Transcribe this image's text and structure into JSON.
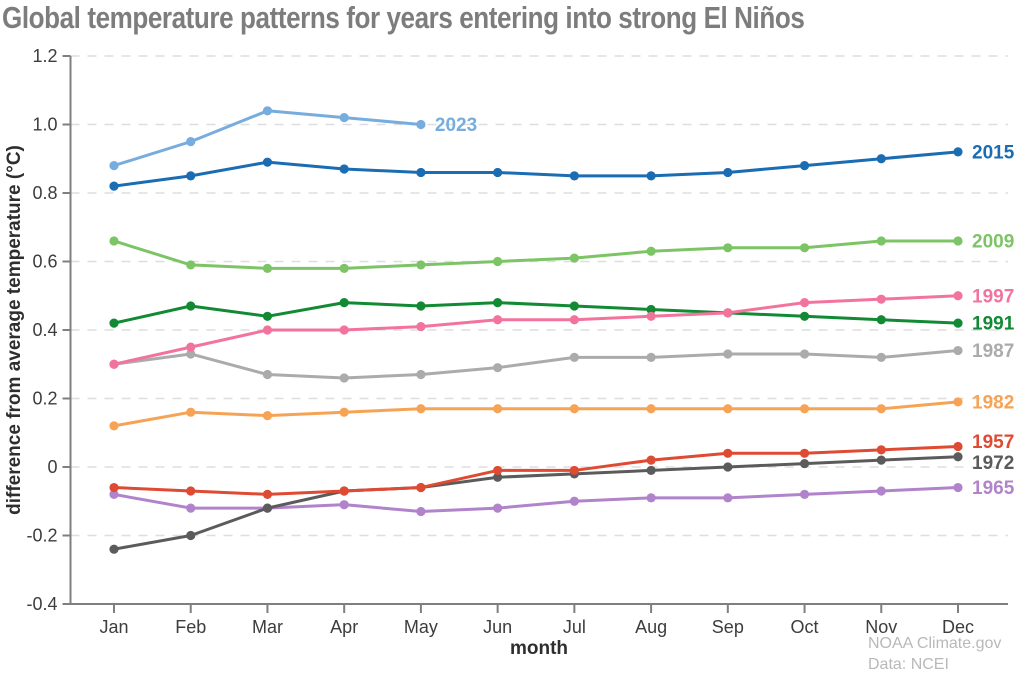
{
  "chart_data": {
    "type": "line",
    "title": "Global temperature patterns for years entering into strong El Niños",
    "xlabel": "month",
    "ylabel": "difference from average temperature (°C)",
    "x_categories": [
      "Jan",
      "Feb",
      "Mar",
      "Apr",
      "May",
      "Jun",
      "Jul",
      "Aug",
      "Sep",
      "Oct",
      "Nov",
      "Dec"
    ],
    "ylim": [
      -0.4,
      1.2
    ],
    "yticks": [
      {
        "value": 1.2,
        "label": "1.2"
      },
      {
        "value": 1.0,
        "label": "1.0"
      },
      {
        "value": 0.8,
        "label": "0.8"
      },
      {
        "value": 0.6,
        "label": "0.6"
      },
      {
        "value": 0.4,
        "label": "0.4"
      },
      {
        "value": 0.2,
        "label": "0.2"
      },
      {
        "value": 0.0,
        "label": "0"
      },
      {
        "value": -0.2,
        "label": "-0.2"
      },
      {
        "value": -0.4,
        "label": "-0.4"
      }
    ],
    "grid": "horizontal-dashed",
    "legend_position": "end-of-line labels",
    "series": [
      {
        "name": "1965",
        "color": "#b183cb",
        "values": [
          -0.08,
          -0.12,
          -0.12,
          -0.11,
          -0.13,
          -0.12,
          -0.1,
          -0.09,
          -0.09,
          -0.08,
          -0.07,
          -0.06
        ]
      },
      {
        "name": "1972",
        "color": "#5b5b5b",
        "values": [
          -0.24,
          -0.2,
          -0.12,
          -0.07,
          -0.06,
          -0.03,
          -0.02,
          -0.01,
          0.0,
          0.01,
          0.02,
          0.03
        ]
      },
      {
        "name": "1957",
        "color": "#de4a32",
        "values": [
          -0.06,
          -0.07,
          -0.08,
          -0.07,
          -0.06,
          -0.01,
          -0.01,
          0.02,
          0.04,
          0.04,
          0.05,
          0.06
        ]
      },
      {
        "name": "1982",
        "color": "#f7a355",
        "values": [
          0.12,
          0.16,
          0.15,
          0.16,
          0.17,
          0.17,
          0.17,
          0.17,
          0.17,
          0.17,
          0.17,
          0.19
        ]
      },
      {
        "name": "1987",
        "color": "#ababab",
        "values": [
          0.3,
          0.33,
          0.27,
          0.26,
          0.27,
          0.29,
          0.32,
          0.32,
          0.33,
          0.33,
          0.32,
          0.34
        ]
      },
      {
        "name": "1991",
        "color": "#128a33",
        "values": [
          0.42,
          0.47,
          0.44,
          0.48,
          0.47,
          0.48,
          0.47,
          0.46,
          0.45,
          0.44,
          0.43,
          0.42
        ]
      },
      {
        "name": "1997",
        "color": "#f2749d",
        "values": [
          0.3,
          0.35,
          0.4,
          0.4,
          0.41,
          0.43,
          0.43,
          0.44,
          0.45,
          0.48,
          0.49,
          0.5
        ]
      },
      {
        "name": "2009",
        "color": "#7cc465",
        "values": [
          0.66,
          0.59,
          0.58,
          0.58,
          0.59,
          0.6,
          0.61,
          0.63,
          0.64,
          0.64,
          0.66,
          0.66
        ]
      },
      {
        "name": "2015",
        "color": "#1a6cb3",
        "values": [
          0.82,
          0.85,
          0.89,
          0.87,
          0.86,
          0.86,
          0.85,
          0.85,
          0.86,
          0.88,
          0.9,
          0.92
        ]
      },
      {
        "name": "2023",
        "color": "#76adde",
        "values": [
          0.88,
          0.95,
          1.04,
          1.02,
          1.0
        ]
      }
    ]
  },
  "attribution": {
    "line1": "NOAA Climate.gov",
    "line2": "Data: NCEI"
  }
}
